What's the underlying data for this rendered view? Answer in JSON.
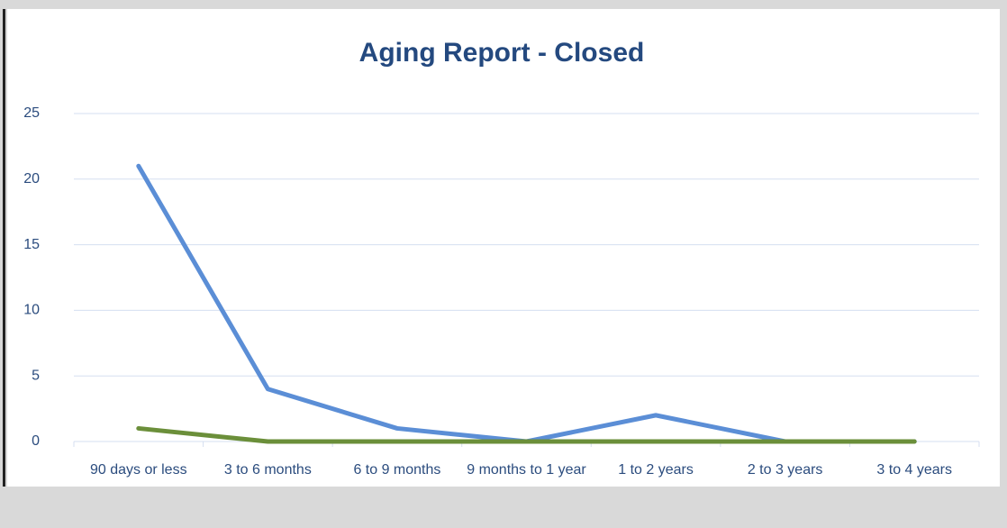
{
  "chart_data": {
    "type": "line",
    "title": "Aging Report - Closed",
    "categories": [
      "90 days or less",
      "3 to 6 months",
      "6 to 9 months",
      "9 months to 1 year",
      "1 to 2 years",
      "2 to 3 years",
      "3 to 4 years"
    ],
    "series": [
      {
        "color": "#5b8ed6",
        "values": [
          21,
          4,
          1,
          0,
          2,
          0,
          0
        ]
      },
      {
        "color": "#6b8f3a",
        "values": [
          1,
          0,
          0,
          0,
          0,
          0,
          0
        ]
      }
    ],
    "ylim": [
      0,
      25
    ],
    "yticks": [
      0,
      5,
      10,
      15,
      20,
      25
    ],
    "grid": true
  }
}
